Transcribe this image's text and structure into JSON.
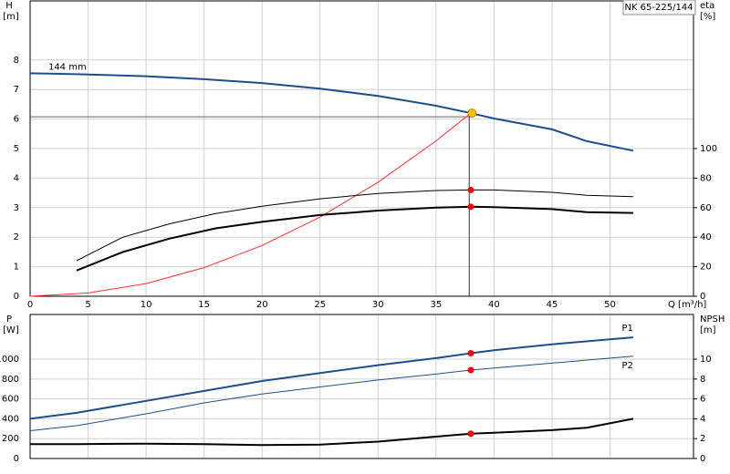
{
  "title": "NK 65-225/144",
  "chart_data": [
    {
      "type": "line",
      "x_label": "Q [m³/h]",
      "y_label": "H",
      "y_unit": "[m]",
      "y2_label": "eta",
      "y2_unit": "[%]",
      "xlim": [
        0,
        57.2
      ],
      "xticks": [
        0,
        5,
        10,
        15,
        20,
        25,
        30,
        35,
        40,
        45,
        50
      ],
      "ylim": [
        0,
        10
      ],
      "yticks": [
        0,
        1,
        2,
        3,
        4,
        5,
        6,
        7,
        8
      ],
      "y2lim": [
        0,
        200
      ],
      "y2ticks": [
        0,
        20,
        40,
        60,
        80,
        100
      ],
      "grid": true,
      "series": [
        {
          "name": "144 mm",
          "color": "#1f4e8c",
          "linewidth": 2,
          "x": [
            0,
            4,
            10,
            15,
            20,
            25,
            30,
            35,
            38,
            40,
            45,
            48,
            52
          ],
          "values": [
            7.55,
            7.52,
            7.45,
            7.35,
            7.22,
            7.03,
            6.78,
            6.45,
            6.2,
            6.02,
            5.65,
            5.25,
            4.93
          ]
        },
        {
          "color": "#ff3030",
          "linewidth": 1,
          "x": [
            0,
            5,
            10,
            15,
            20,
            25,
            30,
            35,
            38
          ],
          "values": [
            0,
            0.11,
            0.43,
            0.97,
            1.72,
            2.68,
            3.86,
            5.26,
            6.2
          ]
        },
        {
          "color": "#000000",
          "linewidth": 1,
          "axis": "y2",
          "x": [
            4,
            8,
            12,
            16,
            20,
            25,
            30,
            35,
            38,
            40,
            45,
            48,
            52
          ],
          "values": [
            24,
            40,
            49,
            56,
            61,
            66,
            69.6,
            71.6,
            72,
            72,
            70.4,
            68.4,
            67.4
          ]
        },
        {
          "color": "#000000",
          "linewidth": 2,
          "axis": "y2",
          "x": [
            4,
            8,
            12,
            16,
            20,
            25,
            30,
            35,
            38,
            40,
            45,
            48,
            52
          ],
          "values": [
            17.4,
            30,
            39,
            46,
            50.4,
            55,
            58,
            60,
            60.6,
            60.4,
            59,
            57,
            56.4
          ]
        }
      ],
      "duty_point": {
        "x": 38.1,
        "y": 6.2,
        "color": "#f5c400"
      },
      "markers": [
        {
          "x": 38,
          "y": 72,
          "axis": "y2",
          "color": "#ff0000"
        },
        {
          "x": 38,
          "y": 60.6,
          "axis": "y2",
          "color": "#ff0000"
        }
      ]
    },
    {
      "type": "line",
      "y_label": "P",
      "y_unit": "[W]",
      "y2_label": "NPSH",
      "y2_unit": "[m]",
      "xlim": [
        0,
        57.2
      ],
      "ylim": [
        0,
        1450
      ],
      "yticks": [
        0,
        200,
        400,
        600,
        800,
        1000
      ],
      "y2lim": [
        0,
        14.5
      ],
      "y2ticks": [
        0,
        2,
        4,
        6,
        8,
        10
      ],
      "grid": true,
      "series": [
        {
          "name": "P1",
          "color": "#1f4e8c",
          "linewidth": 2,
          "x": [
            0,
            4,
            10,
            15,
            20,
            25,
            30,
            35,
            38,
            40,
            45,
            50,
            52
          ],
          "values": [
            400,
            460,
            580,
            680,
            780,
            860,
            940,
            1010,
            1060,
            1090,
            1150,
            1200,
            1220
          ]
        },
        {
          "name": "P2",
          "color": "#1f4e8c",
          "linewidth": 1,
          "x": [
            0,
            4,
            10,
            15,
            20,
            25,
            30,
            35,
            38,
            40,
            45,
            50,
            52
          ],
          "values": [
            280,
            330,
            450,
            560,
            650,
            720,
            790,
            850,
            890,
            910,
            960,
            1010,
            1030
          ]
        },
        {
          "color": "#000000",
          "linewidth": 2,
          "axis": "y2",
          "x": [
            0,
            4,
            10,
            15,
            20,
            25,
            30,
            35,
            38,
            40,
            45,
            48,
            52
          ],
          "values": [
            1.45,
            1.45,
            1.5,
            1.45,
            1.35,
            1.4,
            1.7,
            2.2,
            2.5,
            2.6,
            2.85,
            3.1,
            4.0
          ]
        }
      ],
      "markers": [
        {
          "x": 38,
          "y": 1060,
          "color": "#ff0000"
        },
        {
          "x": 38,
          "y": 890,
          "color": "#ff0000"
        },
        {
          "x": 38,
          "y": 2.5,
          "axis": "y2",
          "color": "#ff0000"
        }
      ]
    }
  ]
}
